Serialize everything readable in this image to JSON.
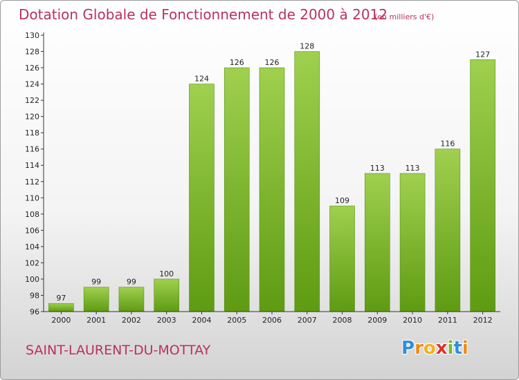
{
  "header": {
    "title": "Dotation Globale de Fonctionnement de 2000 à 2012",
    "subtitle": "(en milliers d'€)"
  },
  "footer": {
    "commune": "SAINT-LAURENT-DU-MOTTAY",
    "logo_letters": [
      "P",
      "r",
      "o",
      "x",
      "i",
      "t",
      "i"
    ],
    "logo_colors": [
      "#2f8fd8",
      "#ec8a1e",
      "#f2b01b",
      "#d8322e",
      "#79b72c",
      "#2f8fd8",
      "#ec8a1e"
    ]
  },
  "colors": {
    "bar_light": "#9fd04f",
    "bar_dark": "#5e9b12",
    "accent": "#b8325a"
  },
  "chart_data": {
    "type": "bar",
    "categories": [
      "2000",
      "2001",
      "2002",
      "2003",
      "2004",
      "2005",
      "2006",
      "2007",
      "2008",
      "2009",
      "2010",
      "2011",
      "2012"
    ],
    "values": [
      97,
      99,
      99,
      100,
      124,
      126,
      126,
      128,
      109,
      113,
      113,
      116,
      127
    ],
    "value_labels": [
      "97",
      "99",
      "99",
      "100",
      "124",
      "126",
      "126",
      "128",
      "109",
      "113",
      "113",
      "116",
      "127"
    ],
    "ylim": [
      96,
      130
    ],
    "y_ticks": [
      96,
      98,
      100,
      102,
      104,
      106,
      108,
      110,
      112,
      114,
      116,
      118,
      120,
      122,
      124,
      126,
      128,
      130
    ],
    "xlabel": "",
    "ylabel": "",
    "grid": false,
    "legend": false
  }
}
